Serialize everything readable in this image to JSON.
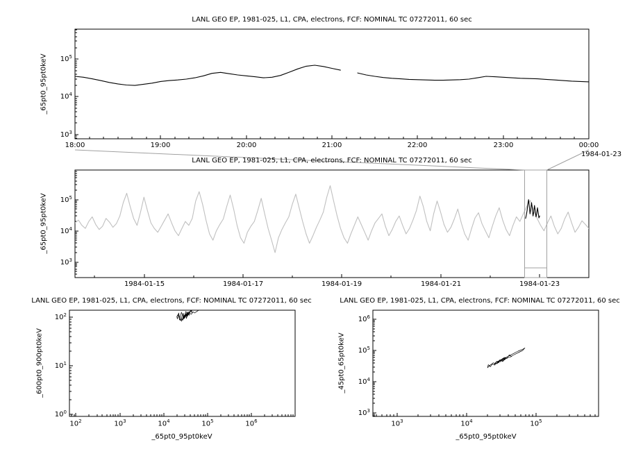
{
  "canvas": {
    "background": "#ffffff"
  },
  "colors": {
    "axis": "#000000",
    "text": "#000000",
    "primary_series": "#000000",
    "context_series": "#c0c0c0",
    "highlight_series": "#000000",
    "selection_box": "#a0a0a0"
  },
  "chart_data": [
    {
      "id": "zoom-timeseries",
      "type": "line",
      "title": "LANL GEO EP, 1981-025, L1, CPA, electrons, FCF: NOMINAL TC 07272011, 60 sec",
      "ylabel": "_65pt0_95pt0keV",
      "xlabel": "",
      "x_axis": {
        "scale": "linear",
        "range": [
          18,
          24
        ],
        "ticks": [
          {
            "v": 18,
            "label": "18:00"
          },
          {
            "v": 19,
            "label": "19:00"
          },
          {
            "v": 20,
            "label": "20:00"
          },
          {
            "v": 21,
            "label": "21:00"
          },
          {
            "v": 22,
            "label": "22:00"
          },
          {
            "v": 23,
            "label": "23:00"
          },
          {
            "v": 24,
            "label": "00:00"
          }
        ],
        "minor_step": 0.1666667,
        "date_label": "1984-01-23"
      },
      "y_axis": {
        "scale": "log10",
        "range": [
          2.88,
          5.8
        ],
        "tick_exponents": [
          3,
          4,
          5
        ]
      },
      "series": {
        "color": "#000000",
        "x_start": 18,
        "x_step": 0.1,
        "values": [
          35000,
          33000,
          30000,
          27000,
          24000,
          22000,
          20500,
          20000,
          21500,
          23000,
          25500,
          27000,
          28000,
          29500,
          32000,
          36000,
          42000,
          44500,
          41000,
          38000,
          36000,
          34000,
          32000,
          33000,
          37000,
          45000,
          55000,
          65000,
          69000,
          64000,
          57000,
          51000,
          null,
          43000,
          38000,
          35000,
          32500,
          31000,
          30000,
          29000,
          28500,
          28000,
          27500,
          27500,
          28000,
          28500,
          29500,
          32000,
          35000,
          34000,
          33000,
          32000,
          31000,
          30500,
          30000,
          29000,
          28000,
          27000,
          26000,
          25500,
          25000
        ]
      }
    },
    {
      "id": "context-timeseries",
      "type": "line",
      "title": "LANL GEO EP, 1981-025, L1, CPA, electrons, FCF: NOMINAL TC 07272011, 60 sec",
      "ylabel": "_65pt0_95pt0keV",
      "xlabel": "",
      "x_axis": {
        "scale": "linear",
        "range": [
          13.6,
          24
        ],
        "ticks": [
          {
            "v": 15,
            "label": "1984-01-15"
          },
          {
            "v": 17,
            "label": "1984-01-17"
          },
          {
            "v": 19,
            "label": "1984-01-19"
          },
          {
            "v": 21,
            "label": "1984-01-21"
          },
          {
            "v": 23,
            "label": "1984-01-23"
          }
        ],
        "minor_values": [
          14,
          16,
          18,
          20,
          22,
          24
        ]
      },
      "y_axis": {
        "scale": "log10",
        "range": [
          2.5,
          5.95
        ],
        "tick_exponents": [
          3,
          4,
          5
        ]
      },
      "series": {
        "color": "#c0c0c0",
        "x_start": 13.6,
        "x_step": 0.0698,
        "values": [
          18000,
          22000,
          15000,
          12000,
          20000,
          28000,
          16000,
          11000,
          14000,
          25000,
          19000,
          13000,
          17000,
          30000,
          80000,
          160000,
          60000,
          25000,
          15000,
          40000,
          120000,
          45000,
          18000,
          12000,
          9000,
          14000,
          22000,
          35000,
          18000,
          10000,
          7000,
          12000,
          20000,
          15000,
          25000,
          90000,
          180000,
          70000,
          22000,
          8000,
          5000,
          10000,
          16000,
          24000,
          60000,
          140000,
          50000,
          15000,
          6000,
          4000,
          9000,
          14000,
          20000,
          45000,
          110000,
          35000,
          12000,
          5000,
          2000,
          6000,
          11000,
          18000,
          28000,
          70000,
          150000,
          55000,
          20000,
          8000,
          4000,
          7000,
          13000,
          22000,
          40000,
          120000,
          280000,
          90000,
          30000,
          12000,
          6000,
          4000,
          8000,
          15000,
          28000,
          16000,
          9000,
          5000,
          10000,
          18000,
          25000,
          35000,
          14000,
          7000,
          11000,
          20000,
          30000,
          15000,
          8000,
          12000,
          22000,
          45000,
          130000,
          60000,
          20000,
          10000,
          35000,
          90000,
          40000,
          16000,
          9000,
          13000,
          24000,
          50000,
          18000,
          8000,
          5000,
          12000,
          26000,
          38000,
          17000,
          10000,
          6000,
          14000,
          30000,
          55000,
          22000,
          11000,
          7000,
          15000,
          28000,
          20000,
          35000,
          60000,
          95000,
          45000,
          25000,
          15000,
          10000,
          18000,
          30000,
          14000,
          8000,
          12000,
          24000,
          40000,
          18000,
          9000,
          13000,
          21000,
          16000,
          12000
        ]
      },
      "highlight": {
        "color": "#000000",
        "x_start": 22.72,
        "x_step": 0.015,
        "values": [
          25000,
          32000,
          45000,
          70000,
          100000,
          60000,
          35000,
          50000,
          80000,
          55000,
          30000,
          40000,
          65000,
          45000,
          28000,
          35000,
          55000,
          38000,
          26000,
          30000
        ]
      },
      "selection_box": {
        "x_start": 22.7,
        "x_end": 23.15
      }
    },
    {
      "id": "scatter-600-900-vs-65-95",
      "type": "scatter",
      "title": "LANL GEO EP, 1981-025, L1, CPA, electrons, FCF: NOMINAL TC 07272011, 60 sec",
      "ylabel": "_600pt0_900pt0keV",
      "xlabel": "_65pt0_95pt0keV",
      "x_axis": {
        "scale": "log10",
        "range": [
          1.85,
          7.0
        ],
        "tick_exponents": [
          2,
          3,
          4,
          5,
          6
        ]
      },
      "y_axis": {
        "scale": "log10",
        "range": [
          -0.043,
          2.143
        ],
        "tick_exponents": [
          0,
          1,
          2
        ]
      },
      "color": "#000000",
      "x": [
        35000,
        33000,
        30000,
        27000,
        24000,
        22000,
        20500,
        20000,
        21500,
        23000,
        25500,
        27000,
        28000,
        29500,
        32000,
        36000,
        42000,
        44500,
        41000,
        38000,
        36000,
        34000,
        32000,
        33000,
        37000,
        45000,
        55000,
        65000,
        69000,
        64000,
        57000,
        51000,
        46500,
        43000,
        38000,
        35000,
        32500,
        31000,
        30000,
        29000,
        28500,
        28000,
        27500,
        27500,
        28000,
        28500,
        29500,
        32000,
        35000,
        34000,
        33000,
        32000,
        31000,
        30500,
        30000,
        29000,
        28000,
        27000,
        26000,
        25500,
        25000
      ],
      "y": [
        105,
        118,
        95,
        112,
        85,
        122,
        92,
        103,
        115,
        88,
        126,
        109,
        120,
        98,
        131,
        114,
        140,
        124,
        135,
        109,
        129,
        103,
        119,
        94,
        126,
        138,
        148,
        144,
        150,
        140,
        131,
        122,
        129,
        115,
        121,
        105,
        114,
        100,
        110,
        94,
        107,
        91,
        103,
        88,
        101,
        96,
        108,
        114,
        124,
        112,
        117,
        105,
        112,
        98,
        105,
        93,
        100,
        86,
        95,
        82,
        89
      ]
    },
    {
      "id": "scatter-45-65-vs-65-95",
      "type": "scatter",
      "title": "LANL GEO EP, 1981-025, L1, CPA, electrons, FCF: NOMINAL TC 07272011, 60 sec",
      "ylabel": "_45pt0_65pt0keV",
      "xlabel": "_65pt0_95pt0keV",
      "x_axis": {
        "scale": "log10",
        "range": [
          2.65,
          5.9
        ],
        "tick_exponents": [
          3,
          4,
          5
        ]
      },
      "y_axis": {
        "scale": "log10",
        "range": [
          2.889,
          6.289
        ],
        "tick_exponents": [
          3,
          4,
          5,
          6
        ]
      },
      "color": "#000000",
      "x": [
        35000,
        33000,
        30000,
        27000,
        24000,
        22000,
        20500,
        20000,
        21500,
        23000,
        25500,
        27000,
        28000,
        29500,
        32000,
        36000,
        42000,
        44500,
        41000,
        38000,
        36000,
        34000,
        32000,
        33000,
        37000,
        45000,
        55000,
        65000,
        69000,
        64000,
        57000,
        51000,
        46500,
        43000,
        38000,
        35000,
        32500,
        31000,
        30000,
        29000,
        28500,
        28000,
        27500,
        27500,
        28000,
        28500,
        29500,
        32000,
        35000,
        34000,
        33000,
        32000,
        31000,
        30500,
        30000,
        29000,
        28000,
        27000,
        26000,
        25500,
        25000
      ],
      "y": [
        52000,
        45000,
        50000,
        38000,
        40000,
        30000,
        35000,
        28000,
        33000,
        37000,
        34000,
        45000,
        40000,
        48000,
        52000,
        58000,
        70000,
        64000,
        72000,
        55000,
        60000,
        47000,
        52000,
        44000,
        60000,
        75000,
        95000,
        110000,
        120000,
        100000,
        88000,
        78000,
        70000,
        62000,
        58000,
        50000,
        54000,
        46000,
        50000,
        42000,
        46000,
        39000,
        44000,
        38000,
        45000,
        41000,
        48000,
        52000,
        60000,
        50000,
        55000,
        45000,
        50000,
        43000,
        47000,
        40000,
        44000,
        37000,
        41000,
        35000,
        38000
      ]
    }
  ]
}
